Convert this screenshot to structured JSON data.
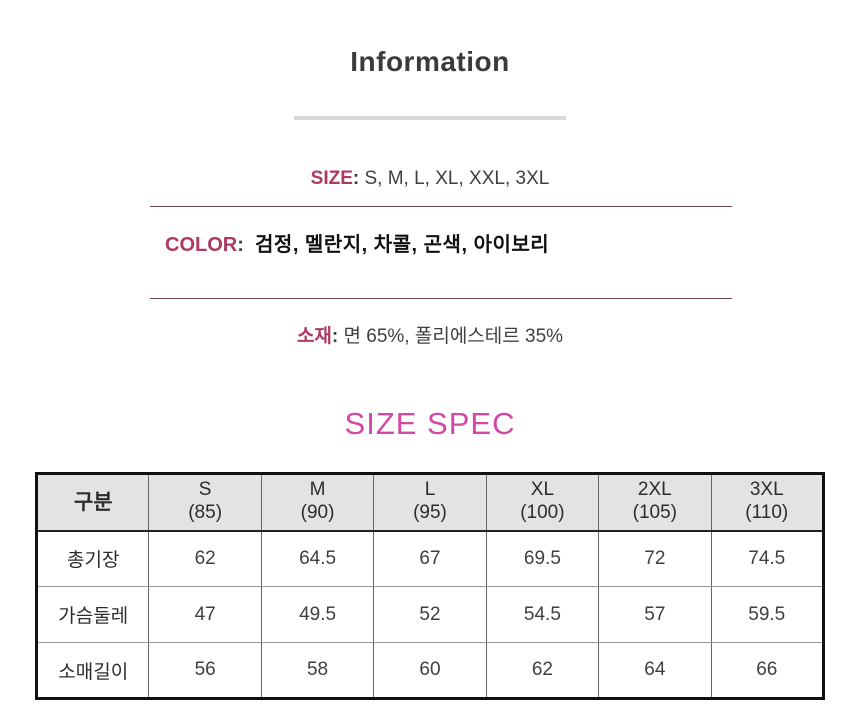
{
  "header": {
    "title": "Information"
  },
  "colors": {
    "accent_rose": "#ad3a63",
    "accent_pink": "#d348a4",
    "rule_line": "#73455a",
    "title_divider": "#d9d9dd",
    "table_header_bg": "#e3e3e3",
    "table_border": "#111111",
    "text_dark": "#3f3f3f"
  },
  "colon": ":",
  "info": {
    "size": {
      "label": "SIZE",
      "value": "S, M, L, XL, XXL, 3XL"
    },
    "color": {
      "label": "COLOR",
      "value": "검정, 멜란지, 차콜, 곤색, 아이보리"
    },
    "material": {
      "label": "소재",
      "value": "면 65%, 폴리에스테르 35%"
    }
  },
  "size_spec": {
    "title": "SIZE SPEC",
    "table": {
      "corner_header": "구분",
      "columns": [
        {
          "size": "S",
          "cm": "(85)"
        },
        {
          "size": "M",
          "cm": "(90)"
        },
        {
          "size": "L",
          "cm": "(95)"
        },
        {
          "size": "XL",
          "cm": "(100)"
        },
        {
          "size": "2XL",
          "cm": "(105)"
        },
        {
          "size": "3XL",
          "cm": "(110)"
        }
      ],
      "rows": [
        {
          "label": "총기장",
          "values": [
            "62",
            "64.5",
            "67",
            "69.5",
            "72",
            "74.5"
          ]
        },
        {
          "label": "가슴둘레",
          "values": [
            "47",
            "49.5",
            "52",
            "54.5",
            "57",
            "59.5"
          ]
        },
        {
          "label": "소매길이",
          "values": [
            "56",
            "58",
            "60",
            "62",
            "64",
            "66"
          ]
        }
      ]
    }
  }
}
